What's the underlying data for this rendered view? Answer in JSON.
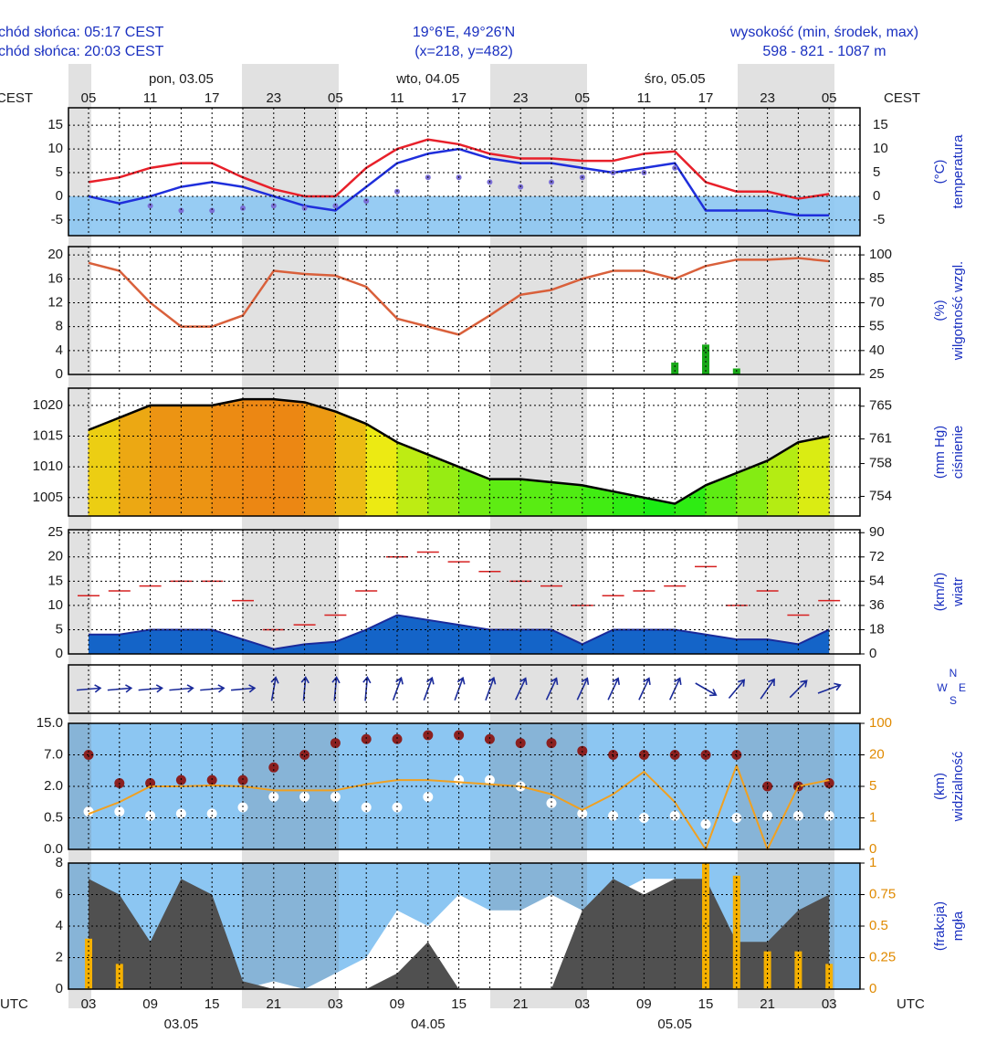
{
  "header": {
    "sunrise": "chód słońca: 05:17 CEST",
    "sunset": "chód słońca: 20:03 CEST",
    "coords": "19°6'E, 49°26'N",
    "grid_point": "(x=218,  y=482)",
    "elevation_title": "wysokość (min, środek, max)",
    "elevation": "598 - 821 - 1087 m"
  },
  "time_axis": {
    "top_zone": "CEST",
    "bottom_zone": "UTC",
    "categories": [
      "05",
      null,
      "11",
      null,
      "17",
      null,
      "23",
      null,
      "05",
      null,
      "11",
      null,
      "17",
      null,
      "23",
      null,
      "05",
      null,
      "11",
      null,
      "17",
      null,
      "23",
      null,
      "05"
    ],
    "utc_categories": [
      "03",
      null,
      "09",
      null,
      "15",
      null,
      "21",
      null,
      "03",
      null,
      "09",
      null,
      "15",
      null,
      "21",
      null,
      "03",
      null,
      "09",
      null,
      "15",
      null,
      "21",
      null,
      "03"
    ],
    "top_dates": [
      "pon, 03.05",
      "wto, 04.05",
      "śro, 05.05"
    ],
    "bottom_dates": [
      "03.05",
      "04.05",
      "05.05"
    ]
  },
  "chart_data": [
    {
      "type": "line",
      "y_unit": "(°C)",
      "y_title": "temperatura",
      "ylim": [
        -8.3,
        18.7
      ],
      "yticks": [
        15,
        10,
        5,
        0,
        -5
      ],
      "series": [
        {
          "color": "#e8202a",
          "values": [
            3,
            4,
            6,
            7,
            7,
            4,
            1.5,
            0,
            0,
            6,
            10,
            12,
            11,
            9,
            8,
            8,
            7.5,
            7.5,
            9,
            9.5,
            3,
            1,
            1,
            -0.5,
            0.5
          ]
        },
        {
          "color": "#1f2fdc",
          "values": [
            0,
            -1.5,
            0,
            2,
            3,
            2,
            0,
            -2,
            -3,
            2,
            7,
            9,
            10,
            8,
            7,
            7,
            6,
            5,
            6,
            7,
            -3,
            -3,
            -3,
            -4,
            -4
          ]
        },
        {
          "color": "#7b6fd6",
          "style": "dotted",
          "values": [
            null,
            null,
            -2,
            -3,
            -3,
            -2.5,
            -2,
            -2.5,
            -2,
            -1,
            1,
            4,
            4,
            3,
            2,
            3,
            4,
            5,
            5,
            6,
            null,
            null,
            null,
            null,
            null
          ]
        }
      ]
    },
    {
      "type": "bar_line",
      "y_unit": "(%)",
      "y_title": "wilgotność wzgl.",
      "ylim": [
        0,
        21.4
      ],
      "yticks": [
        20,
        16,
        12,
        8,
        4,
        0
      ],
      "y2lim": [
        25,
        105.2
      ],
      "y2ticks": [
        100,
        85,
        70,
        55,
        40,
        25
      ],
      "series": [
        {
          "type": "bar",
          "color": "#18a818",
          "values": [
            0,
            0,
            0,
            0,
            0,
            0,
            0,
            0,
            0,
            0,
            0,
            0,
            0,
            0,
            0,
            0,
            0,
            0,
            0,
            2,
            5,
            1,
            0,
            0,
            0
          ]
        },
        {
          "type": "line",
          "axis": "y2",
          "color": "#d9603b",
          "values": [
            95,
            90,
            70,
            55,
            55,
            62,
            90,
            88,
            87,
            80,
            60,
            55,
            50,
            62,
            75,
            78,
            85,
            90,
            90,
            85,
            93,
            97,
            97,
            98,
            96
          ]
        }
      ]
    },
    {
      "type": "area",
      "y_unit": "(mm Hg)",
      "y_title": "ciśnienie",
      "ylim": [
        1002.0,
        1022.8
      ],
      "yticks": [
        1020,
        1015,
        1010,
        1005
      ],
      "y2lim": [
        751.6,
        767.2
      ],
      "y2ticks": [
        765,
        761,
        758,
        754
      ],
      "series": [
        {
          "color": "#000000",
          "values": [
            1016,
            1018,
            1020,
            1020,
            1020,
            1021,
            1021,
            1020.5,
            1019,
            1017,
            1014,
            1012,
            1010,
            1008,
            1008,
            1007.5,
            1007,
            1006,
            1005,
            1004,
            1007,
            1009,
            1011,
            1014,
            1015
          ]
        }
      ]
    },
    {
      "type": "wind",
      "y_unit": "(km/h)",
      "y_title": "wiatr",
      "ylim": [
        0,
        25.6
      ],
      "yticks": [
        25,
        20,
        15,
        10,
        5,
        0
      ],
      "y2lim": [
        0,
        92.2
      ],
      "y2ticks": [
        90,
        72,
        54,
        36,
        18,
        0
      ],
      "series": [
        {
          "type": "gust",
          "color": "#d62020",
          "values": [
            12,
            13,
            14,
            15,
            15,
            11,
            5,
            6,
            8,
            13,
            20,
            21,
            19,
            17,
            15,
            14,
            10,
            12,
            13,
            14,
            18,
            10,
            13,
            8,
            11
          ]
        },
        {
          "type": "area",
          "color": "#1a2a9a",
          "fill": "#1464c8",
          "values": [
            4,
            4,
            5,
            5,
            5,
            3,
            1,
            2,
            2.5,
            5,
            8,
            7,
            6,
            5,
            5,
            5,
            2,
            5,
            5,
            5,
            4,
            3,
            3,
            2,
            5
          ]
        }
      ]
    },
    {
      "type": "direction",
      "compass": [
        "N",
        "E",
        "S",
        "W"
      ],
      "color": "#1a2a9a",
      "values": [
        265,
        265,
        265,
        265,
        265,
        265,
        190,
        185,
        185,
        185,
        200,
        200,
        200,
        200,
        205,
        205,
        205,
        205,
        205,
        205,
        300,
        220,
        215,
        225,
        250
      ]
    },
    {
      "type": "scatter",
      "y_unit": "(km)",
      "y_title": "widzialność",
      "scale": "piecewise",
      "ylim": [
        0,
        15
      ],
      "yticks": [
        {
          "value": 15,
          "label": "15.0"
        },
        {
          "value": 7,
          "label": "7.0"
        },
        {
          "value": 2,
          "label": "2.0"
        },
        {
          "value": 0.5,
          "label": "0.5"
        },
        {
          "value": 0,
          "label": "0.0"
        }
      ],
      "y2lim": [
        0,
        100
      ],
      "y2ticks": [
        100,
        20,
        5,
        1,
        0
      ],
      "series": [
        {
          "type": "dots",
          "color": "#8b2020",
          "values": [
            7,
            2.5,
            2.5,
            3,
            3,
            3,
            5,
            7,
            10,
            11,
            11,
            12,
            12,
            11,
            10,
            10,
            8,
            7,
            7,
            7,
            7,
            7,
            2,
            2,
            2.5
          ]
        },
        {
          "type": "dots",
          "color": "#ffffff",
          "values": [
            0.8,
            0.8,
            0.6,
            0.7,
            0.7,
            1,
            1.5,
            1.5,
            1.5,
            1,
            1,
            1.5,
            3,
            3,
            2,
            1.2,
            0.7,
            0.6,
            0.5,
            0.6,
            0.4,
            0.5,
            0.6,
            0.6,
            0.6
          ]
        },
        {
          "type": "line",
          "axis": "y2",
          "color": "#f0a020",
          "values": [
            1.5,
            3,
            5,
            5,
            5.5,
            5,
            4.5,
            4.5,
            4.5,
            6,
            8,
            8,
            7,
            6,
            5,
            4,
            2,
            4,
            12,
            3,
            0,
            15,
            0,
            5,
            8
          ]
        }
      ]
    },
    {
      "type": "cloud",
      "y_unit": "(frakcja)",
      "y_title": "mgła",
      "ylim": [
        0,
        8
      ],
      "yticks": [
        8,
        6,
        4,
        2,
        0
      ],
      "y2lim": [
        0,
        1
      ],
      "y2ticks": [
        1,
        {
          "value": 0.75,
          "label": "0.75"
        },
        {
          "value": 0.5,
          "label": "0.5"
        },
        {
          "value": 0.25,
          "label": "0.25"
        },
        0
      ],
      "series": [
        {
          "type": "area",
          "color": "#ffffff",
          "values": [
            0,
            0,
            0,
            0,
            0,
            0,
            0.5,
            0,
            1,
            2,
            5,
            4,
            6,
            5,
            5,
            6,
            5,
            6,
            7,
            7,
            5,
            3,
            2,
            3,
            4
          ]
        },
        {
          "type": "area",
          "color": "#505050",
          "values": [
            7,
            6,
            3,
            7,
            6,
            0.5,
            0,
            0,
            0,
            0,
            1,
            3,
            0,
            0,
            0,
            0,
            5,
            7,
            6,
            7,
            7,
            3,
            3,
            5,
            6
          ]
        },
        {
          "type": "bar",
          "axis": "y2",
          "color": "#f5b000",
          "values": [
            0.4,
            0.2,
            0,
            0,
            0,
            0,
            0,
            0,
            0,
            0,
            0,
            0,
            0,
            0,
            0,
            0,
            0,
            0,
            0,
            0,
            1,
            0.9,
            0.3,
            0.3,
            0.2
          ]
        }
      ]
    }
  ]
}
